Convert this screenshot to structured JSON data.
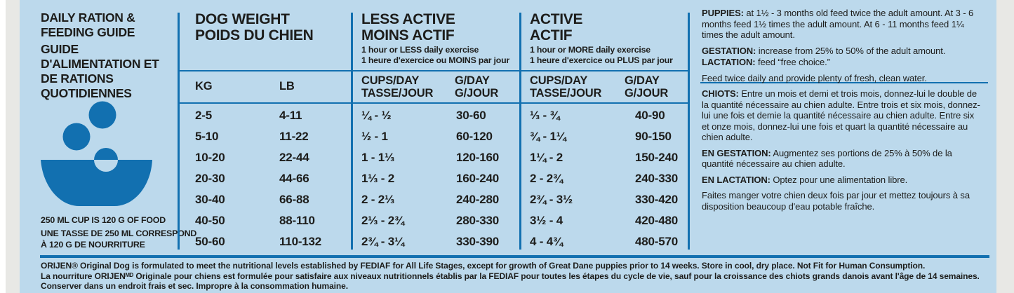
{
  "colors": {
    "bg": "#bcd9ec",
    "accent": "#1270b0",
    "ink": "#1d1d1b",
    "margin_gray": "#e8e8e5"
  },
  "left_panel": {
    "title_en": "DAILY RATION & FEEDING GUIDE",
    "title_fr": "GUIDE D'ALIMENTATION ET DE RATIONS QUOTIDIENNES",
    "icon": "food-bowl-icon",
    "note_en": "250 ML CUP IS 120 G OF FOOD",
    "note_fr": "UNE TASSE DE 250 ML CORRESPOND À 120 G DE NOURRITURE"
  },
  "table": {
    "weight_header": {
      "en": "DOG WEIGHT",
      "fr": "POIDS DU CHIEN"
    },
    "less_active": {
      "en": "LESS ACTIVE",
      "fr": "MOINS ACTIF",
      "sub_en": "1 hour or LESS daily exercise",
      "sub_fr": "1 heure d'exercice ou MOINS par jour"
    },
    "active": {
      "en": "ACTIVE",
      "fr": "ACTIF",
      "sub_en": "1 hour or MORE daily exercise",
      "sub_fr": "1 heure d'exercice ou PLUS par jour"
    },
    "col_labels": {
      "kg": "KG",
      "lb": "LB",
      "cups_en": "CUPS/DAY",
      "cups_fr": "TASSE/JOUR",
      "g_en": "G/DAY",
      "g_fr": "G/JOUR"
    },
    "rows": [
      {
        "kg": "2-5",
        "lb": "4-11",
        "la_cups": "¼ - ½",
        "la_g": "30-60",
        "a_cups": "⅓ - ¾",
        "a_g": "40-90"
      },
      {
        "kg": "5-10",
        "lb": "11-22",
        "la_cups": "½ - 1",
        "la_g": "60-120",
        "a_cups": "¾ - 1¼",
        "a_g": "90-150"
      },
      {
        "kg": "10-20",
        "lb": "22-44",
        "la_cups": "1 - 1⅓",
        "la_g": "120-160",
        "a_cups": "1¼ - 2",
        "a_g": "150-240"
      },
      {
        "kg": "20-30",
        "lb": "44-66",
        "la_cups": "1⅓ - 2",
        "la_g": "160-240",
        "a_cups": "2 - 2¾",
        "a_g": "240-330"
      },
      {
        "kg": "30-40",
        "lb": "66-88",
        "la_cups": "2 - 2⅓",
        "la_g": "240-280",
        "a_cups": "2¾ - 3½",
        "a_g": "330-420"
      },
      {
        "kg": "40-50",
        "lb": "88-110",
        "la_cups": "2⅓ - 2¾",
        "la_g": "280-330",
        "a_cups": "3½ - 4",
        "a_g": "420-480"
      },
      {
        "kg": "50-60",
        "lb": "110-132",
        "la_cups": "2¾ - 3¼",
        "la_g": "330-390",
        "a_cups": "4 - 4¾",
        "a_g": "480-570"
      }
    ]
  },
  "right_panel": {
    "en": [
      {
        "label": "PUPPIES:",
        "text": "at 1½ - 3 months old feed twice the adult amount. At 3 - 6 months feed 1½ times the adult amount. At 6 - 11 months feed 1¼ times the adult amount."
      },
      {
        "label": "GESTATION:",
        "text": "increase from 25% to 50% of the adult amount."
      },
      {
        "label": "LACTATION:",
        "text": "feed “free choice.”"
      },
      {
        "label": "",
        "text": "Feed twice daily and provide plenty of fresh, clean water."
      }
    ],
    "fr": [
      {
        "label": "CHIOTS:",
        "text": "Entre un mois et demi et trois mois, donnez-lui le double de la quantité nécessaire au chien adulte. Entre trois et six mois, donnez-lui une fois et demie la quantité nécessaire au chien adulte. Entre six et onze mois, donnez-lui une fois et quart la quantité nécessaire au chien adulte."
      },
      {
        "label": "EN GESTATION:",
        "text": "Augmentez ses portions de 25% à 50% de la quantité nécessaire au chien adulte."
      },
      {
        "label": "EN LACTATION:",
        "text": "Optez pour une alimentation libre."
      },
      {
        "label": "",
        "text": "Faites manger votre chien deux fois par jour et mettez toujours à sa disposition beaucoup d'eau potable fraîche."
      }
    ]
  },
  "footer": {
    "en": "ORIJEN® Original Dog is formulated to meet the nutritional levels established by FEDIAF for All Life Stages, except for growth of Great Dane puppies prior to 14 weeks. Store in cool, dry place. Not Fit for Human Consumption.",
    "fr": "La nourriture ORIJENᴹᴰ Originale pour chiens est formulée pour satisfaire aux niveaux nutritionnels établis par la FEDIAF pour toutes les étapes du cycle de vie, sauf pour la croissance des chiots grands danois avant l'âge de 14 semaines. Conserver dans un endroit frais et sec. Impropre à la consommation humaine."
  }
}
